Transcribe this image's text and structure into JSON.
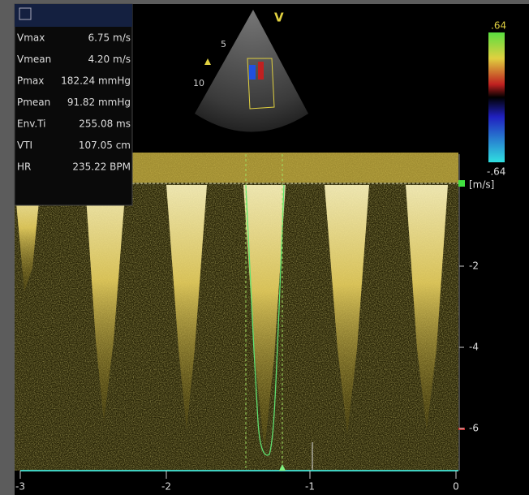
{
  "measurements": {
    "rows": [
      [
        "Vmax",
        "6.75 m/s"
      ],
      [
        "Vmean",
        "4.20 m/s"
      ],
      [
        "Pmax",
        "182.24 mmHg"
      ],
      [
        "Pmean",
        "91.82 mmHg"
      ],
      [
        "Env.Ti",
        "255.08 ms"
      ],
      [
        "VTI",
        "107.05 cm"
      ],
      [
        "HR",
        "235.22 BPM"
      ]
    ]
  },
  "color_scale": {
    "max": ".64",
    "min": "-.64"
  },
  "sector": {
    "mode": "V",
    "depth_marks": [
      "5",
      "10"
    ]
  },
  "velocity_axis": {
    "unit": "[m/s]",
    "ticks": [
      "-2",
      "-4",
      "-6"
    ]
  },
  "time_axis": {
    "ticks": [
      "-3",
      "-2",
      "-1",
      "0"
    ]
  }
}
